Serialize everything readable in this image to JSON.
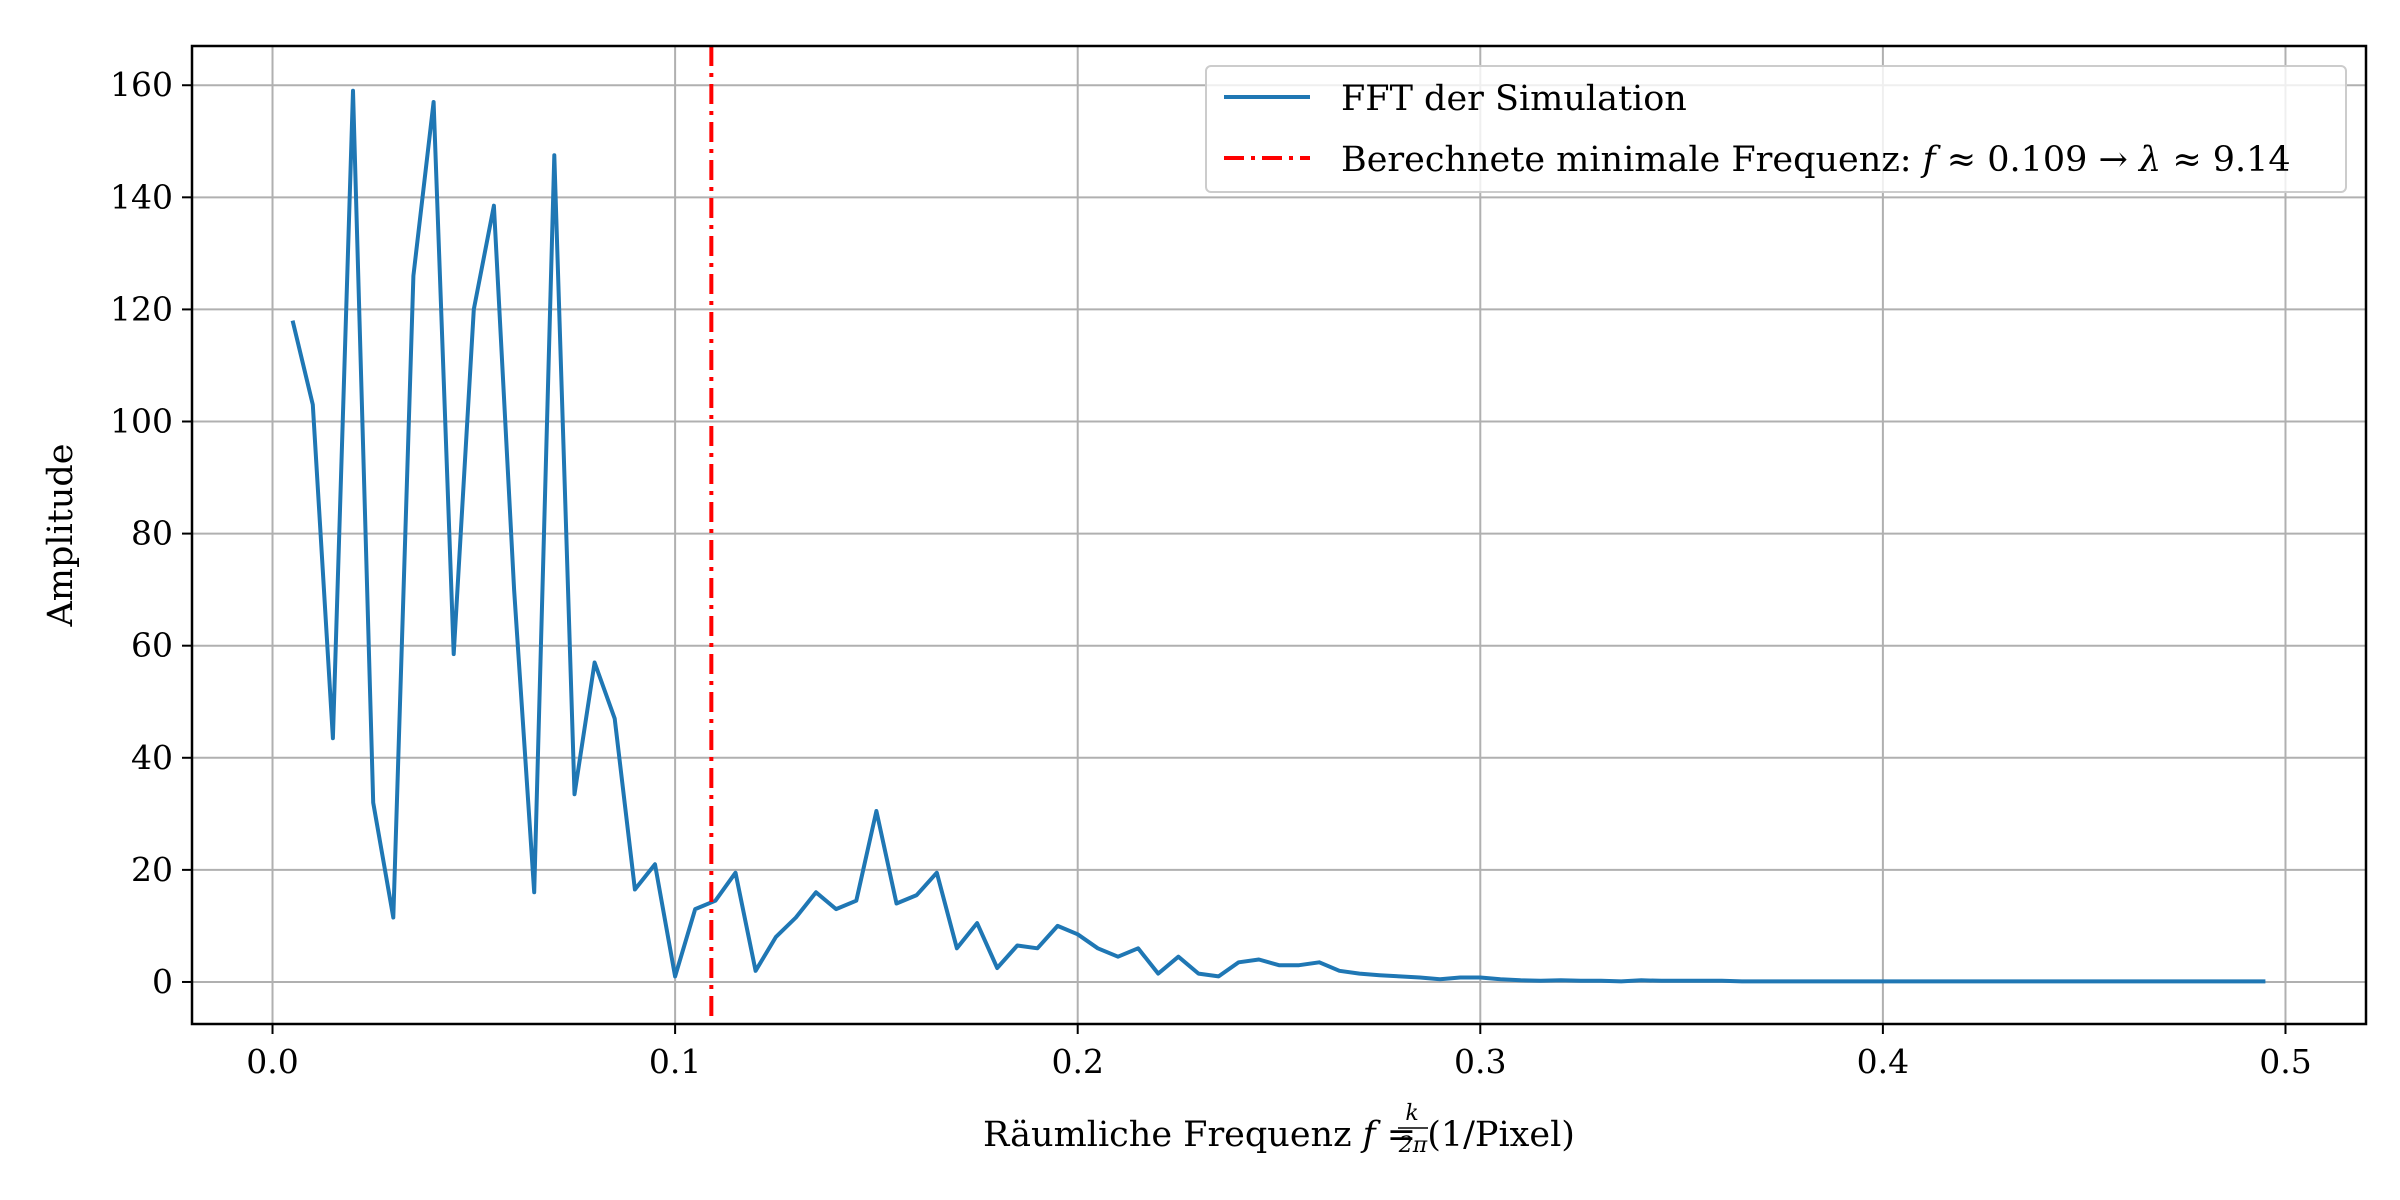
{
  "chart_data": {
    "type": "line",
    "title": "",
    "xlabel": {
      "prefix": "Räumliche Frequenz ",
      "var": "f",
      "eq": " = ",
      "frac_num": "k",
      "frac_den": "2π",
      "suffix": " (1/Pixel)"
    },
    "ylabel": "Amplitude",
    "xlim": [
      -0.02,
      0.52
    ],
    "ylim": [
      -7.5,
      167
    ],
    "xticks": [
      0.0,
      0.1,
      0.2,
      0.3,
      0.4,
      0.5
    ],
    "xtick_labels": [
      "0.0",
      "0.1",
      "0.2",
      "0.3",
      "0.4",
      "0.5"
    ],
    "yticks": [
      0,
      20,
      40,
      60,
      80,
      100,
      120,
      140,
      160
    ],
    "ytick_labels": [
      "0",
      "20",
      "40",
      "60",
      "80",
      "100",
      "120",
      "140",
      "160"
    ],
    "grid": true,
    "legend_position": "upper right",
    "series": [
      {
        "name": "FFT der Simulation",
        "color": "#1f77b4",
        "style": "solid",
        "x": [
          0.005,
          0.01,
          0.015,
          0.02,
          0.025,
          0.03,
          0.035,
          0.04,
          0.045,
          0.05,
          0.055,
          0.06,
          0.065,
          0.07,
          0.075,
          0.08,
          0.085,
          0.09,
          0.095,
          0.1,
          0.105,
          0.11,
          0.115,
          0.12,
          0.125,
          0.13,
          0.135,
          0.14,
          0.145,
          0.15,
          0.155,
          0.16,
          0.165,
          0.17,
          0.175,
          0.18,
          0.185,
          0.19,
          0.195,
          0.2,
          0.205,
          0.21,
          0.215,
          0.22,
          0.225,
          0.23,
          0.235,
          0.24,
          0.245,
          0.25,
          0.255,
          0.26,
          0.265,
          0.27,
          0.275,
          0.28,
          0.285,
          0.29,
          0.295,
          0.3,
          0.305,
          0.31,
          0.315,
          0.32,
          0.325,
          0.33,
          0.335,
          0.34,
          0.345,
          0.35,
          0.355,
          0.36,
          0.365,
          0.37,
          0.375,
          0.38,
          0.385,
          0.39,
          0.395,
          0.4,
          0.405,
          0.41,
          0.415,
          0.42,
          0.425,
          0.43,
          0.435,
          0.44,
          0.445,
          0.45,
          0.455,
          0.46,
          0.465,
          0.47,
          0.475,
          0.48,
          0.485,
          0.49,
          0.495
        ],
        "y": [
          118,
          103,
          43.5,
          159,
          32,
          11.5,
          126,
          157,
          58.5,
          120,
          138.5,
          70,
          16,
          147.5,
          33.5,
          57,
          47,
          16.5,
          21,
          1,
          13,
          14.5,
          19.5,
          2,
          8,
          11.5,
          16,
          13,
          14.5,
          30.5,
          14,
          15.5,
          19.5,
          6,
          10.5,
          2.5,
          6.5,
          6,
          10,
          8.5,
          6,
          4.5,
          6,
          1.5,
          4.5,
          1.5,
          1,
          3.5,
          4,
          3,
          3,
          3.5,
          2,
          1.5,
          1.2,
          1,
          0.8,
          0.5,
          0.8,
          0.8,
          0.5,
          0.3,
          0.2,
          0.3,
          0.2,
          0.2,
          0.1,
          0.3,
          0.2,
          0.2,
          0.2,
          0.2,
          0.1,
          0.1,
          0.1,
          0.1,
          0.1,
          0.1,
          0.1,
          0.1,
          0.1,
          0.1,
          0.1,
          0.1,
          0.1,
          0.1,
          0.1,
          0.1,
          0.1,
          0.1,
          0.1,
          0.1,
          0.1,
          0.1,
          0.1,
          0.1,
          0.1,
          0.1,
          0.1
        ]
      }
    ],
    "vline": {
      "name_prefix": "Berechnete minimale Frequenz:  ",
      "var_f": "f",
      "approx1": " ≈ 0.109 → ",
      "var_lambda": "λ",
      "approx2": " ≈ 9.14",
      "x": 0.109,
      "color": "#ff0000",
      "style": "dashdot"
    }
  }
}
